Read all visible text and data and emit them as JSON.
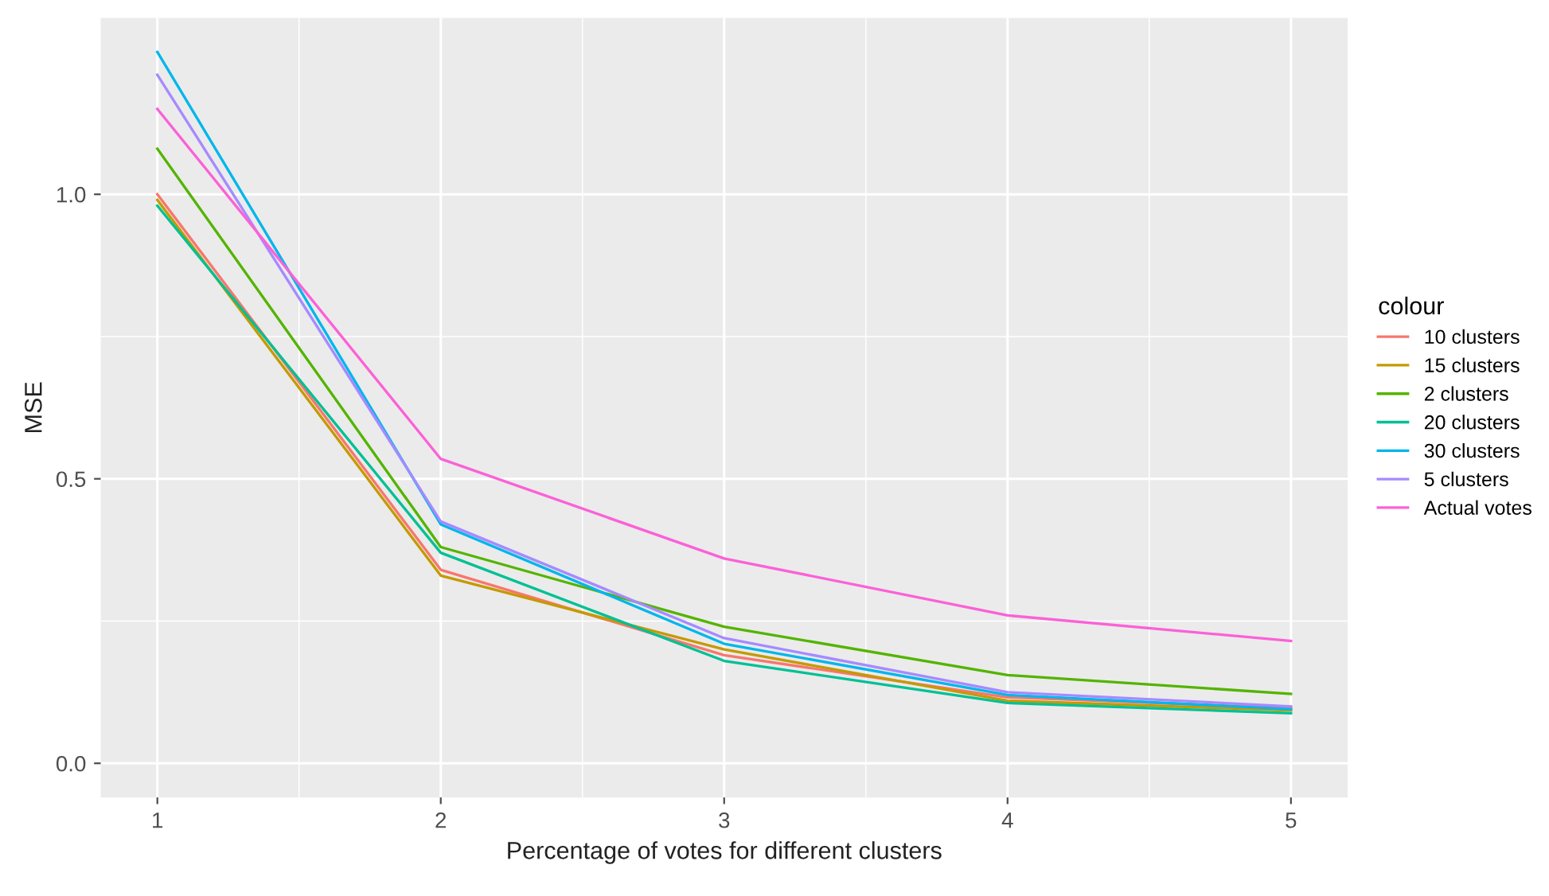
{
  "chart_data": {
    "type": "line",
    "xlabel": "Percentage of votes for different clusters",
    "ylabel": "MSE",
    "legend_title": "colour",
    "x": [
      1,
      2,
      3,
      4,
      5
    ],
    "series": [
      {
        "name": "10 clusters",
        "color": "#f8766d",
        "values": [
          1.0,
          0.34,
          0.19,
          0.116,
          0.097
        ]
      },
      {
        "name": "15 clusters",
        "color": "#c49a00",
        "values": [
          0.99,
          0.33,
          0.2,
          0.11,
          0.093
        ]
      },
      {
        "name": "2 clusters",
        "color": "#53b400",
        "values": [
          1.08,
          0.38,
          0.24,
          0.155,
          0.122
        ]
      },
      {
        "name": "20 clusters",
        "color": "#00c094",
        "values": [
          0.98,
          0.37,
          0.18,
          0.106,
          0.088
        ]
      },
      {
        "name": "30 clusters",
        "color": "#00b6eb",
        "values": [
          1.25,
          0.42,
          0.21,
          0.12,
          0.095
        ]
      },
      {
        "name": "5 clusters",
        "color": "#a58aff",
        "values": [
          1.21,
          0.425,
          0.22,
          0.125,
          0.1
        ]
      },
      {
        "name": "Actual votes",
        "color": "#fb61d7",
        "values": [
          1.15,
          0.535,
          0.36,
          0.26,
          0.215
        ]
      }
    ],
    "xlim": [
      0.8,
      5.2
    ],
    "ylim": [
      -0.06,
      1.31
    ],
    "xticks": [
      1,
      2,
      3,
      4,
      5
    ],
    "yticks": [
      {
        "value": 0,
        "label": "0.0"
      },
      {
        "value": 0.5,
        "label": "0.5"
      },
      {
        "value": 1,
        "label": "1.0"
      }
    ],
    "grid": true,
    "legend": "right"
  }
}
